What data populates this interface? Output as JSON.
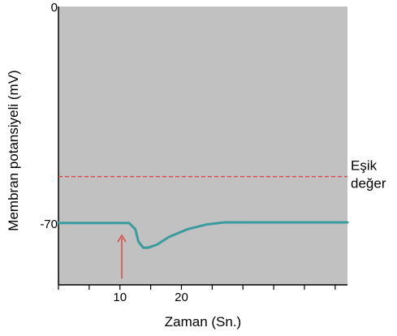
{
  "chart_data": {
    "type": "line",
    "xlabel": "Zaman (Sn.)",
    "ylabel": "Membran potansiyeli (mV)",
    "xlim": [
      0,
      47
    ],
    "ylim": [
      -90,
      0
    ],
    "x_ticks": [
      10,
      20
    ],
    "x_minor_ticks": [
      0,
      5,
      10,
      15,
      20,
      25,
      30,
      35,
      40,
      45
    ],
    "y_ticks": [
      0,
      -70
    ],
    "grid": false,
    "colors": {
      "background": "#c1c1c1",
      "series": "#3a9b9e",
      "threshold": "#e04545",
      "arrow": "#d85050"
    },
    "series": [
      {
        "x": [
          0,
          8.0,
          11.5,
          12.5,
          13.0,
          13.8,
          14.5,
          16.0,
          18.0,
          21.0,
          24.0,
          27.0,
          30.0,
          47
        ],
        "y": [
          -70,
          -70,
          -70,
          -72,
          -76,
          -78,
          -78,
          -77,
          -74.5,
          -72,
          -70.5,
          -69.8,
          -69.8,
          -69.8
        ]
      }
    ],
    "threshold": {
      "y": -55,
      "label_line1": "Eşik",
      "label_line2": "değer"
    },
    "stimulus_arrow": {
      "x": 10.3,
      "y_from": -88,
      "y_to": -74
    }
  }
}
